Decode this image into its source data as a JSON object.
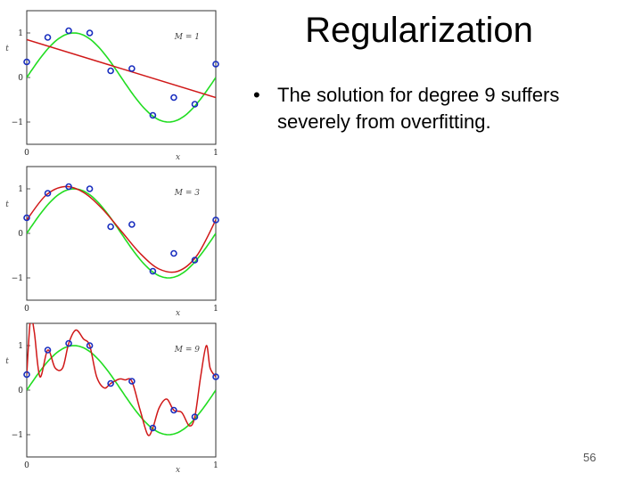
{
  "title": "Regularization",
  "bullet": {
    "marker": "•",
    "text": "The solution for degree 9 suffers severely from overfitting."
  },
  "page_number": "56",
  "colors": {
    "green_curve": "#22dd22",
    "red_fit": "#d01818",
    "points": "#1a2fbf"
  },
  "chart_data": [
    {
      "type": "line",
      "label": "M = 1",
      "xlabel": "x",
      "ylabel": "t",
      "xticks": [
        "0",
        "1"
      ],
      "yticks": [
        "1",
        "0",
        "−1"
      ],
      "xlim": [
        0,
        1
      ],
      "ylim": [
        -1.5,
        1.5
      ],
      "points": {
        "x": [
          0,
          0.111,
          0.222,
          0.333,
          0.444,
          0.556,
          0.667,
          0.778,
          0.889,
          1.0
        ],
        "y": [
          0.35,
          0.9,
          1.05,
          1.0,
          0.15,
          0.2,
          -0.85,
          -0.45,
          -0.6,
          0.3
        ]
      },
      "fit": {
        "type": "linear",
        "x": [
          0,
          1
        ],
        "y": [
          0.85,
          -0.45
        ]
      }
    },
    {
      "type": "line",
      "label": "M = 3",
      "xlabel": "x",
      "ylabel": "t",
      "xticks": [
        "0",
        "1"
      ],
      "yticks": [
        "1",
        "0",
        "−1"
      ],
      "xlim": [
        0,
        1
      ],
      "ylim": [
        -1.5,
        1.5
      ],
      "points": {
        "x": [
          0,
          0.111,
          0.222,
          0.333,
          0.444,
          0.556,
          0.667,
          0.778,
          0.889,
          1.0
        ],
        "y": [
          0.35,
          0.9,
          1.05,
          1.0,
          0.15,
          0.2,
          -0.85,
          -0.45,
          -0.6,
          0.3
        ]
      },
      "fit": {
        "type": "cubic",
        "x": [
          0,
          0.1,
          0.2,
          0.3,
          0.4,
          0.5,
          0.6,
          0.7,
          0.8,
          0.9,
          1.0
        ],
        "y": [
          0.3,
          0.85,
          1.05,
          0.92,
          0.55,
          0.05,
          -0.45,
          -0.8,
          -0.85,
          -0.5,
          0.3
        ]
      }
    },
    {
      "type": "line",
      "label": "M = 9",
      "xlabel": "x",
      "ylabel": "t",
      "xticks": [
        "0",
        "1"
      ],
      "yticks": [
        "1",
        "0",
        "−1"
      ],
      "xlim": [
        0,
        1
      ],
      "ylim": [
        -1.5,
        1.5
      ],
      "points": {
        "x": [
          0,
          0.111,
          0.222,
          0.333,
          0.444,
          0.556,
          0.667,
          0.778,
          0.889,
          1.0
        ],
        "y": [
          0.35,
          0.9,
          1.05,
          1.0,
          0.15,
          0.2,
          -0.85,
          -0.45,
          -0.6,
          0.3
        ]
      },
      "fit": {
        "type": "degree-9",
        "x": [
          0.0,
          0.02,
          0.04,
          0.07,
          0.111,
          0.15,
          0.19,
          0.222,
          0.26,
          0.3,
          0.333,
          0.37,
          0.41,
          0.444,
          0.49,
          0.52,
          0.556,
          0.6,
          0.64,
          0.667,
          0.7,
          0.74,
          0.778,
          0.82,
          0.86,
          0.889,
          0.92,
          0.95,
          0.97,
          1.0
        ],
        "y": [
          0.35,
          1.6,
          1.3,
          0.3,
          0.9,
          0.5,
          0.5,
          1.05,
          1.35,
          1.15,
          1.0,
          0.3,
          0.05,
          0.15,
          0.25,
          0.23,
          0.2,
          -0.45,
          -1.0,
          -0.85,
          -0.4,
          -0.2,
          -0.45,
          -0.5,
          -0.8,
          -0.6,
          0.3,
          1.0,
          0.5,
          0.3
        ]
      }
    }
  ]
}
